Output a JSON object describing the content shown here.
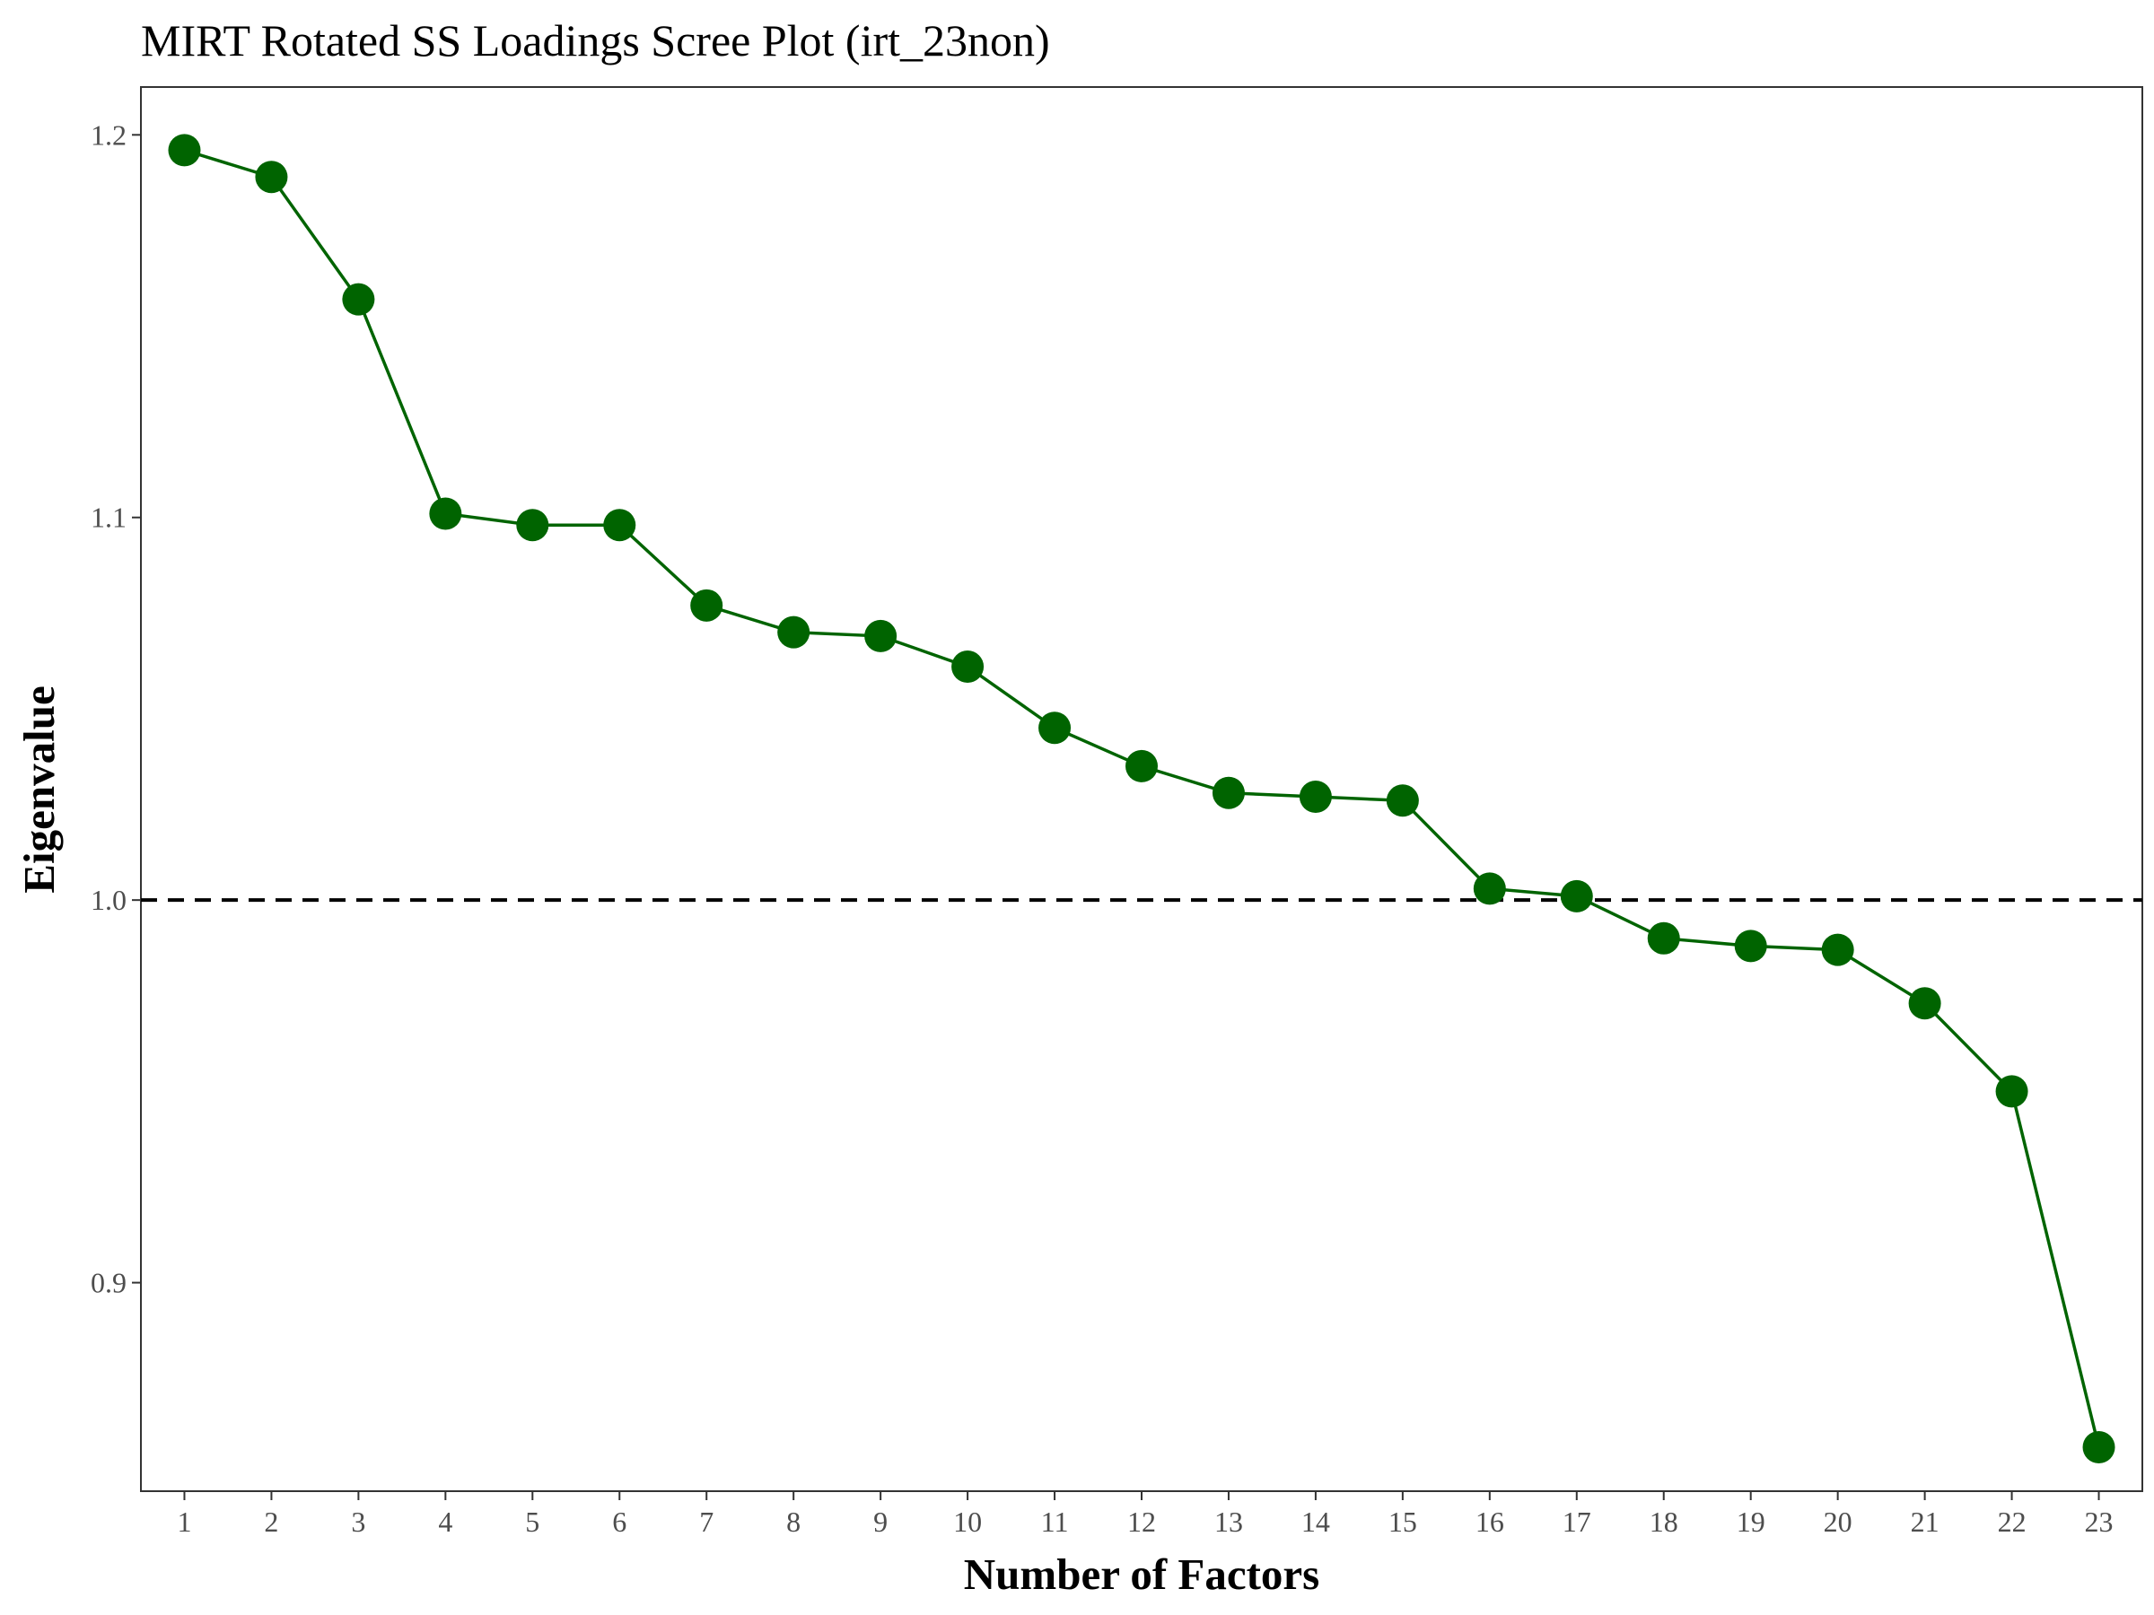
{
  "chart_data": {
    "type": "line",
    "title": "MIRT Rotated SS Loadings Scree Plot (irt_23non)",
    "xlabel": "Number of Factors",
    "ylabel": "Eigenvalue",
    "x": [
      1,
      2,
      3,
      4,
      5,
      6,
      7,
      8,
      9,
      10,
      11,
      12,
      13,
      14,
      15,
      16,
      17,
      18,
      19,
      20,
      21,
      22,
      23
    ],
    "x_tick_labels": [
      "1",
      "2",
      "3",
      "4",
      "5",
      "6",
      "7",
      "8",
      "9",
      "10",
      "11",
      "12",
      "13",
      "14",
      "15",
      "16",
      "17",
      "18",
      "19",
      "20",
      "21",
      "22",
      "23"
    ],
    "series": [
      {
        "values": [
          1.196,
          1.189,
          1.157,
          1.101,
          1.098,
          1.098,
          1.077,
          1.07,
          1.069,
          1.061,
          1.045,
          1.035,
          1.028,
          1.027,
          1.026,
          1.003,
          1.001,
          0.99,
          0.988,
          0.987,
          0.973,
          0.95,
          0.857
        ],
        "color": "#006400"
      }
    ],
    "reference_line": {
      "y": 1.0,
      "style": "dashed",
      "color": "#000000"
    },
    "y_ticks": [
      0.9,
      1.0,
      1.1,
      1.2
    ],
    "y_tick_labels": [
      "0.9",
      "1.0",
      "1.1",
      "1.2"
    ],
    "xlim": [
      0.5,
      23.5
    ],
    "ylim": [
      0.8455,
      1.2125
    ],
    "grid": false,
    "legend": "none"
  }
}
